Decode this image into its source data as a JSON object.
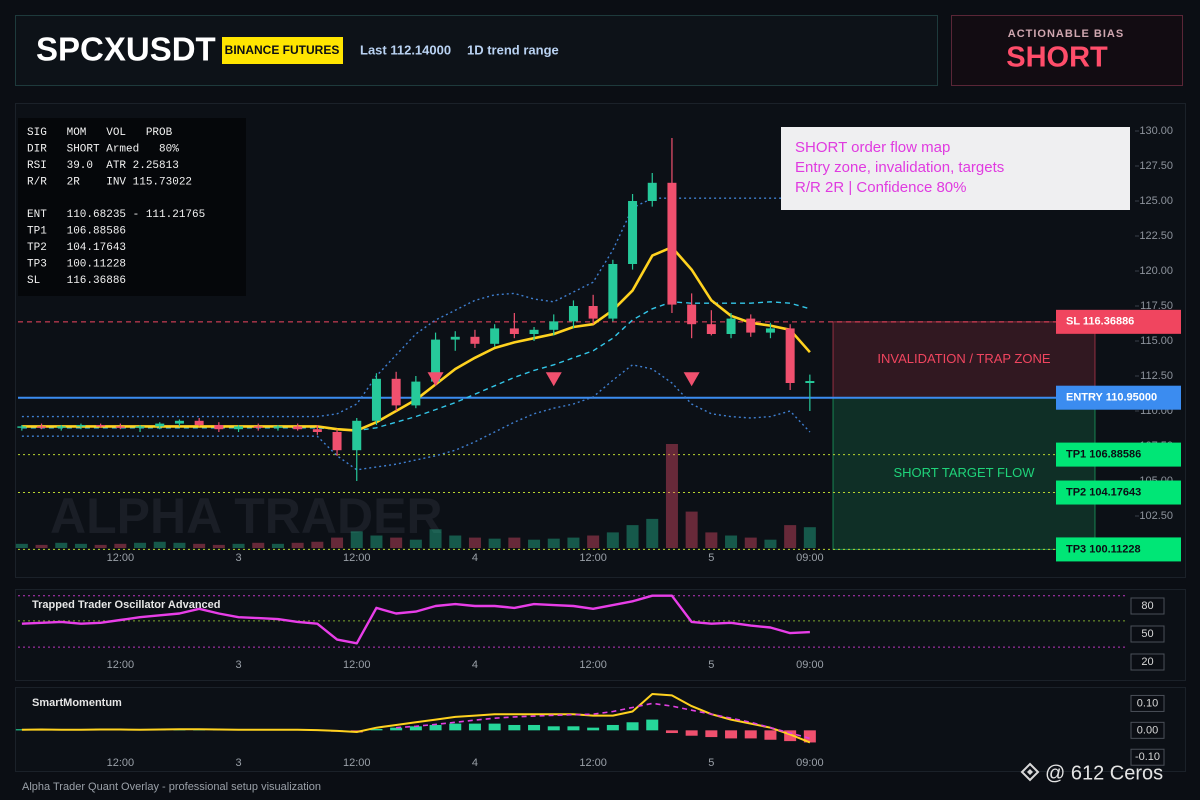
{
  "header": {
    "symbol": "SPCXUSDT",
    "exchange": "BINANCE FUTURES",
    "last": "Last 112.14000",
    "range": "1D trend range"
  },
  "bias": {
    "label": "ACTIONABLE BIAS",
    "value": "SHORT"
  },
  "info_panel": {
    "lines": [
      "SIG   MOM   VOL   PROB",
      "DIR   SHORT Armed   80%",
      "RSI   39.0  ATR 2.25813",
      "R/R   2R    INV 115.73022",
      "ENT   110.68235 - 111.21765",
      "TP1   106.88586",
      "TP2   104.17643",
      "TP3   100.11228",
      "SL    116.36886"
    ]
  },
  "annotation": {
    "lines": [
      "SHORT order flow map",
      "Entry zone, invalidation, targets",
      "R/R 2R | Confidence 80%"
    ]
  },
  "watermark": "ALPHA TRADER",
  "footer": "Alpha Trader Quant Overlay - professional setup visualization",
  "credit": "@ 612 Ceros",
  "chart_data": [
    {
      "type": "candlestick",
      "categories": [
        null,
        null,
        null,
        null,
        null,
        "12:00",
        null,
        null,
        null,
        null,
        null,
        "3",
        null,
        null,
        null,
        null,
        null,
        "12:00",
        null,
        null,
        null,
        null,
        null,
        "4",
        null,
        null,
        null,
        null,
        null,
        "12:00",
        null,
        null,
        null,
        null,
        null,
        "5",
        null,
        null,
        null,
        null,
        "09:00"
      ],
      "open": [
        108.8,
        108.9,
        108.8,
        108.9,
        109.0,
        108.9,
        108.8,
        108.9,
        109.1,
        109.3,
        109.0,
        108.7,
        108.9,
        108.8,
        108.9,
        108.7,
        108.5,
        107.2,
        109.3,
        112.3,
        110.4,
        112.1,
        115.1,
        115.3,
        114.8,
        115.9,
        115.5,
        115.8,
        116.4,
        117.5,
        116.6,
        120.5,
        125.0,
        126.3,
        117.6,
        116.2,
        115.5,
        116.6,
        115.6,
        115.9,
        112.0
      ],
      "high": [
        109.0,
        109.1,
        109.0,
        109.1,
        109.1,
        109.1,
        109.0,
        109.2,
        109.4,
        109.5,
        109.2,
        109.0,
        109.1,
        109.0,
        109.1,
        109.0,
        108.7,
        109.5,
        112.7,
        112.8,
        112.5,
        115.6,
        115.7,
        115.8,
        116.2,
        117.0,
        116.0,
        116.9,
        117.9,
        118.3,
        120.8,
        125.5,
        127.0,
        129.5,
        118.4,
        117.2,
        117.0,
        116.9,
        116.3,
        116.2,
        112.6
      ],
      "low": [
        108.6,
        108.7,
        108.6,
        108.7,
        108.8,
        108.7,
        108.5,
        108.7,
        108.9,
        108.9,
        108.5,
        108.5,
        108.6,
        108.6,
        108.6,
        108.3,
        106.8,
        105.0,
        109.0,
        110.0,
        110.2,
        111.8,
        114.3,
        114.5,
        114.6,
        115.2,
        115.0,
        115.4,
        115.9,
        116.2,
        116.4,
        120.1,
        124.6,
        117.0,
        115.2,
        115.4,
        115.2,
        115.3,
        115.2,
        111.5,
        110.0
      ],
      "close": [
        108.9,
        108.8,
        108.9,
        109.0,
        108.9,
        108.8,
        108.9,
        109.1,
        109.3,
        109.0,
        108.7,
        108.9,
        108.8,
        108.9,
        108.7,
        108.5,
        107.2,
        109.3,
        112.3,
        110.4,
        112.1,
        115.1,
        115.3,
        114.8,
        115.9,
        115.5,
        115.8,
        116.4,
        117.5,
        116.6,
        120.5,
        125.0,
        126.3,
        117.6,
        116.2,
        115.5,
        116.6,
        115.6,
        115.9,
        112.0,
        112.14
      ],
      "volume": [
        4,
        3,
        5,
        4,
        3,
        4,
        5,
        6,
        5,
        4,
        3,
        4,
        5,
        4,
        5,
        6,
        10,
        16,
        12,
        10,
        8,
        18,
        12,
        10,
        9,
        10,
        8,
        9,
        10,
        12,
        15,
        22,
        28,
        100,
        35,
        15,
        12,
        10,
        8,
        22,
        20
      ],
      "up_color": "#26c99a",
      "down_color": "#f0506e",
      "ylim": [
        100,
        132
      ],
      "yticks": [
        {
          "value": 102.5,
          "label": "102.50"
        },
        {
          "value": 105,
          "label": "105.00"
        },
        {
          "value": 107.5,
          "label": "107.50"
        },
        {
          "value": 110,
          "label": "110.00"
        },
        {
          "value": 112.5,
          "label": "112.50"
        },
        {
          "value": 115,
          "label": "115.00"
        },
        {
          "value": 117.5,
          "label": "117.50"
        },
        {
          "value": 120,
          "label": "120.00"
        },
        {
          "value": 122.5,
          "label": "122.50"
        },
        {
          "value": 125,
          "label": "125.00"
        },
        {
          "value": 127.5,
          "label": "127.50"
        },
        {
          "value": 130,
          "label": "130.00"
        }
      ],
      "overlays": [
        {
          "color": "#3f7fd0",
          "dash": "dotted",
          "values": [
            109.6,
            109.6,
            109.6,
            109.6,
            109.6,
            109.6,
            109.6,
            109.6,
            109.6,
            109.6,
            109.6,
            109.6,
            109.6,
            109.6,
            109.6,
            109.6,
            109.8,
            110.5,
            112.5,
            114.0,
            115.5,
            116.5,
            117.2,
            117.9,
            118.3,
            118.4,
            118.0,
            117.8,
            118.5,
            119.2,
            121.5,
            124.5,
            125.2,
            125.2,
            125.2,
            125.2,
            125.2,
            125.2,
            125.2,
            125.2,
            null
          ]
        },
        {
          "color": "#3f7fd0",
          "dash": "dotted",
          "values": [
            108.2,
            108.2,
            108.2,
            108.2,
            108.2,
            108.2,
            108.2,
            108.2,
            108.2,
            108.2,
            108.2,
            108.2,
            108.2,
            108.2,
            108.2,
            108.2,
            106.8,
            105.8,
            106.0,
            106.2,
            106.5,
            106.8,
            107.2,
            107.8,
            108.5,
            109.2,
            109.8,
            110.2,
            110.5,
            111.0,
            112.2,
            113.3,
            113.0,
            112.0,
            110.5,
            109.8,
            109.6,
            109.5,
            109.6,
            110.0,
            108.5
          ]
        },
        {
          "color": "#33c6e8",
          "dash": "dashed",
          "values": [
            108.8,
            108.8,
            108.8,
            108.8,
            108.8,
            108.8,
            108.8,
            108.8,
            108.8,
            108.8,
            108.8,
            108.8,
            108.8,
            108.8,
            108.8,
            108.8,
            108.7,
            108.6,
            108.8,
            109.2,
            109.6,
            110.1,
            110.6,
            111.2,
            111.8,
            112.4,
            112.9,
            113.3,
            113.8,
            114.3,
            115.2,
            116.5,
            117.3,
            117.8,
            117.7,
            117.7,
            117.7,
            117.7,
            117.8,
            117.7,
            117.3
          ]
        },
        {
          "color": "#ffd21f",
          "dash": "solid",
          "values": [
            108.9,
            108.9,
            108.9,
            108.9,
            108.9,
            108.9,
            108.9,
            108.9,
            108.9,
            108.9,
            108.9,
            108.9,
            108.9,
            108.9,
            108.9,
            108.9,
            108.7,
            108.6,
            109.2,
            110.0,
            110.8,
            111.9,
            113.0,
            113.8,
            114.5,
            114.9,
            115.2,
            115.5,
            116.0,
            116.2,
            117.2,
            118.6,
            121.1,
            121.7,
            120.1,
            117.9,
            116.8,
            116.3,
            116.1,
            115.8,
            114.2
          ]
        }
      ],
      "signals": {
        "color": "#f0506e",
        "values": [
          null,
          null,
          null,
          null,
          null,
          null,
          null,
          null,
          null,
          null,
          null,
          null,
          null,
          null,
          null,
          null,
          null,
          null,
          null,
          null,
          null,
          112.2,
          null,
          null,
          null,
          null,
          null,
          112.2,
          null,
          null,
          null,
          null,
          null,
          null,
          112.2,
          null,
          null,
          null,
          null,
          null,
          null
        ]
      },
      "zones": [
        {
          "label": "INVALIDATION / TRAP ZONE",
          "from": 110.95,
          "to": 116.36886,
          "color": "#f0455f"
        },
        {
          "label": "SHORT TARGET FLOW",
          "from": 100.11228,
          "to": 110.95,
          "color": "#1fd37a"
        }
      ],
      "levels": [
        {
          "label": "SL 116.36886",
          "value": 116.36886,
          "color": "#f0455f",
          "line_color": "#f0455f",
          "dash": "dashed",
          "text_color": "#ffffff"
        },
        {
          "label": "ENTRY 110.95000",
          "value": 110.95,
          "color": "#3b8cf0",
          "line_color": "#3b8cf0",
          "dash": "solid",
          "text_color": "#ffffff"
        },
        {
          "label": "TP1 106.88586",
          "value": 106.88586,
          "color": "#00e676",
          "line_color": "#b8d430",
          "dash": "dotted",
          "text_color": "#0b0e14"
        },
        {
          "label": "TP2 104.17643",
          "value": 104.17643,
          "color": "#00e676",
          "line_color": "#b8d430",
          "dash": "dotted",
          "text_color": "#0b0e14"
        },
        {
          "label": "TP3 100.11228",
          "value": 100.11228,
          "color": "#00e676",
          "line_color": "#b8d430",
          "dash": "dotted",
          "text_color": "#0b0e14"
        }
      ]
    },
    {
      "type": "line",
      "title": "Trapped Trader Oscillator Advanced",
      "categories": [
        null,
        null,
        null,
        null,
        null,
        "12:00",
        null,
        null,
        null,
        null,
        null,
        "3",
        null,
        null,
        null,
        null,
        null,
        "12:00",
        null,
        null,
        null,
        null,
        null,
        "4",
        null,
        null,
        null,
        null,
        null,
        "12:00",
        null,
        null,
        null,
        null,
        null,
        "5",
        null,
        null,
        null,
        null,
        "09:00"
      ],
      "series": [
        {
          "color": "#e83ee8",
          "dash": "solid",
          "values": [
            61,
            62,
            63,
            61,
            62,
            65,
            68,
            70,
            72,
            77,
            72,
            68,
            67,
            66,
            63,
            61,
            44,
            40,
            78,
            72,
            74,
            80,
            82,
            80,
            80,
            78,
            82,
            81,
            80,
            77,
            81,
            85,
            91,
            91,
            63,
            61,
            62,
            59,
            57,
            51,
            52
          ]
        }
      ],
      "reference_lines": [
        {
          "value": 91,
          "color": "#e83ee8"
        },
        {
          "value": 64,
          "color": "#9acd32"
        },
        {
          "value": 36,
          "color": "#e83ee8"
        }
      ],
      "ylim": [
        5,
        95
      ],
      "yticks": [
        80,
        50,
        20
      ]
    },
    {
      "type": "histogram",
      "title": "SmartMomentum",
      "categories": [
        null,
        null,
        null,
        null,
        null,
        "12:00",
        null,
        null,
        null,
        null,
        null,
        "3",
        null,
        null,
        null,
        null,
        null,
        "12:00",
        null,
        null,
        null,
        null,
        null,
        "4",
        null,
        null,
        null,
        null,
        null,
        "12:00",
        null,
        null,
        null,
        null,
        null,
        "5",
        null,
        null,
        null,
        null,
        "09:00"
      ],
      "histogram": {
        "up_color": "#26d79a",
        "down_color": "#f0506e",
        "values": [
          0.004,
          0.005,
          0.004,
          0.005,
          0.006,
          0.005,
          0.004,
          0.005,
          0.006,
          0.006,
          0.005,
          0.004,
          0.005,
          0.004,
          0.004,
          0.003,
          -0.005,
          -0.008,
          0.005,
          0.01,
          0.015,
          0.02,
          0.025,
          0.025,
          0.025,
          0.02,
          0.02,
          0.015,
          0.015,
          0.01,
          0.02,
          0.03,
          0.04,
          -0.01,
          -0.02,
          -0.025,
          -0.03,
          -0.03,
          -0.035,
          -0.04,
          -0.045
        ]
      },
      "series": [
        {
          "color": "#ffd21f",
          "dash": "solid",
          "values": [
            0.002,
            0.003,
            0.002,
            0.002,
            0.003,
            0.003,
            0.002,
            0.003,
            0.004,
            0.004,
            0.003,
            0.002,
            0.002,
            0.002,
            0.002,
            0.001,
            -0.002,
            -0.006,
            0.01,
            0.02,
            0.03,
            0.04,
            0.05,
            0.055,
            0.06,
            0.06,
            0.06,
            0.06,
            0.06,
            0.055,
            0.055,
            0.07,
            0.135,
            0.13,
            0.09,
            0.06,
            0.04,
            0.025,
            0.01,
            -0.015,
            -0.045
          ]
        },
        {
          "color": "#e040e0",
          "dash": "dashed",
          "values": [
            null,
            null,
            null,
            null,
            null,
            null,
            null,
            null,
            null,
            null,
            null,
            null,
            null,
            null,
            null,
            null,
            null,
            null,
            null,
            0.01,
            0.015,
            0.022,
            0.03,
            0.038,
            0.045,
            0.05,
            0.053,
            0.056,
            0.058,
            0.06,
            0.07,
            0.085,
            0.1,
            0.09,
            0.075,
            0.06,
            0.045,
            0.03,
            0.01,
            -0.01,
            -0.03
          ]
        }
      ],
      "ylim": [
        -0.14,
        0.15
      ],
      "yticks": [
        {
          "value": 0.1,
          "label": "0.10"
        },
        {
          "value": 0,
          "label": "0.00"
        },
        {
          "value": -0.1,
          "label": "-0.10"
        }
      ]
    }
  ]
}
